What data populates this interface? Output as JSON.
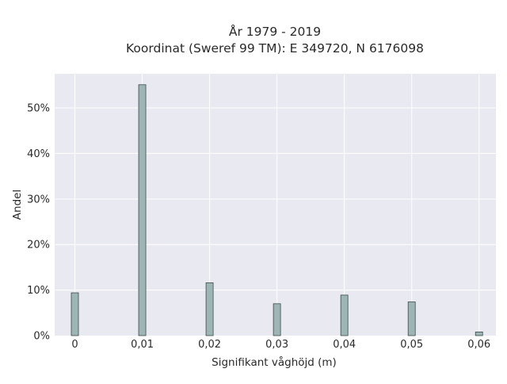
{
  "chart_data": {
    "type": "bar",
    "title_lines": [
      "År 1979 - 2019",
      "Koordinat (Sweref 99 TM): E 349720, N 6176098"
    ],
    "xlabel": "Signifikant våghöjd (m)",
    "ylabel": "Andel",
    "x": [
      0,
      0.01,
      0.02,
      0.03,
      0.04,
      0.05,
      0.06
    ],
    "x_tick_labels": [
      "0",
      "0,01",
      "0,02",
      "0,03",
      "0,04",
      "0,05",
      "0,06"
    ],
    "values": [
      9.4,
      55.1,
      11.6,
      7.0,
      8.9,
      7.4,
      0.8
    ],
    "xlim": [
      -0.003,
      0.0625
    ],
    "ylim": [
      0,
      57.5
    ],
    "y_ticks": [
      0,
      10,
      20,
      30,
      40,
      50
    ],
    "y_tick_labels": [
      "0%",
      "10%",
      "20%",
      "30%",
      "40%",
      "50%"
    ],
    "grid": true,
    "colors": {
      "bar_fill": "#9eb5b5",
      "bar_stroke": "#3d4a4a",
      "plot_background": "#e9e9f1",
      "grid": "#ffffff"
    }
  }
}
